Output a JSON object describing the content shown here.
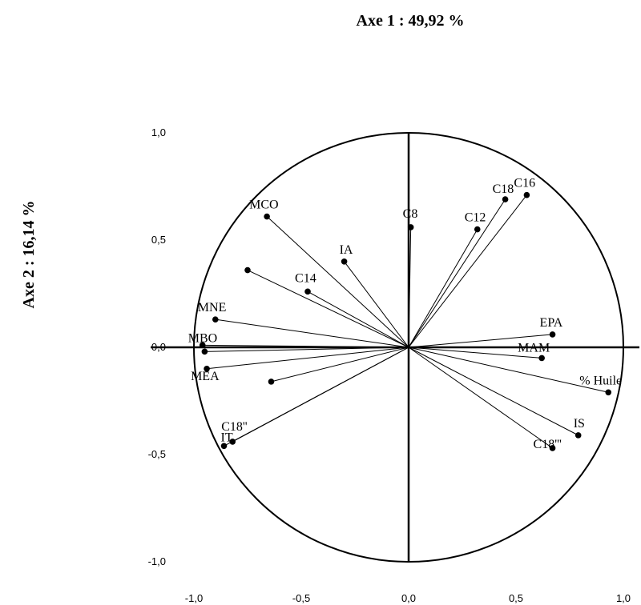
{
  "chart_data": {
    "type": "scatter",
    "subtype": "correlation-circle",
    "xlabel": "Axe 1 : 49,92 %",
    "ylabel": "Axe 2 : 16,14 %",
    "xlim": [
      -1.0,
      1.0
    ],
    "ylim": [
      -1.0,
      1.0
    ],
    "x_ticks": [
      "-1,0",
      "-0,5",
      "0,0",
      "0,5",
      "1,0"
    ],
    "y_ticks": [
      "1,0",
      "0,5",
      "0,0",
      "-0,5",
      "-1,0"
    ],
    "grid": false,
    "legend": "none",
    "points": [
      {
        "label": "MCO",
        "x": -0.66,
        "y": 0.61
      },
      {
        "label": "IA",
        "x": -0.3,
        "y": 0.4
      },
      {
        "label": "",
        "x": -0.75,
        "y": 0.36
      },
      {
        "label": "C14",
        "x": -0.47,
        "y": 0.26
      },
      {
        "label": "MNE",
        "x": -0.9,
        "y": 0.13
      },
      {
        "label": "MBO",
        "x": -0.96,
        "y": 0.01
      },
      {
        "label": "",
        "x": -0.95,
        "y": -0.02
      },
      {
        "label": "MEA",
        "x": -0.94,
        "y": -0.1
      },
      {
        "label": "",
        "x": -0.64,
        "y": -0.16
      },
      {
        "label": "C18''",
        "x": -0.82,
        "y": -0.44
      },
      {
        "label": "IT",
        "x": -0.86,
        "y": -0.46
      },
      {
        "label": "C8",
        "x": 0.01,
        "y": 0.56
      },
      {
        "label": "C12",
        "x": 0.32,
        "y": 0.55
      },
      {
        "label": "C18",
        "x": 0.45,
        "y": 0.69
      },
      {
        "label": "C16",
        "x": 0.55,
        "y": 0.71
      },
      {
        "label": "EPA",
        "x": 0.67,
        "y": 0.06
      },
      {
        "label": "MAM",
        "x": 0.62,
        "y": -0.05
      },
      {
        "label": "% Huile",
        "x": 0.93,
        "y": -0.21
      },
      {
        "label": "IS",
        "x": 0.79,
        "y": -0.41
      },
      {
        "label": "C18'''",
        "x": 0.67,
        "y": -0.47
      }
    ]
  }
}
